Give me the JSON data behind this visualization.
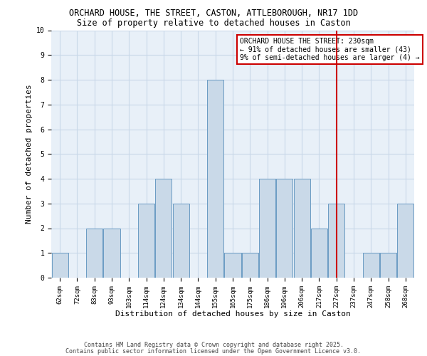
{
  "title": "ORCHARD HOUSE, THE STREET, CASTON, ATTLEBOROUGH, NR17 1DD",
  "subtitle": "Size of property relative to detached houses in Caston",
  "xlabel": "Distribution of detached houses by size in Caston",
  "ylabel": "Number of detached properties",
  "categories": [
    "62sqm",
    "72sqm",
    "83sqm",
    "93sqm",
    "103sqm",
    "114sqm",
    "124sqm",
    "134sqm",
    "144sqm",
    "155sqm",
    "165sqm",
    "175sqm",
    "186sqm",
    "196sqm",
    "206sqm",
    "217sqm",
    "227sqm",
    "237sqm",
    "247sqm",
    "258sqm",
    "268sqm"
  ],
  "values": [
    1,
    0,
    2,
    2,
    0,
    3,
    4,
    3,
    0,
    8,
    1,
    1,
    4,
    4,
    4,
    2,
    3,
    0,
    1,
    1,
    3
  ],
  "bar_color": "#c9d9e8",
  "bar_edge_color": "#6a9bc3",
  "red_line_index": 16,
  "red_line_color": "#cc0000",
  "ylim": [
    0,
    10
  ],
  "yticks": [
    0,
    1,
    2,
    3,
    4,
    5,
    6,
    7,
    8,
    9,
    10
  ],
  "grid_color": "#c8d8e8",
  "background_color": "#e8f0f8",
  "annotation_title": "ORCHARD HOUSE THE STREET: 230sqm",
  "annotation_line1": "← 91% of detached houses are smaller (43)",
  "annotation_line2": "9% of semi-detached houses are larger (4) →",
  "annotation_box_color": "#ffffff",
  "annotation_box_edge": "#cc0000",
  "footer1": "Contains HM Land Registry data © Crown copyright and database right 2025.",
  "footer2": "Contains public sector information licensed under the Open Government Licence v3.0.",
  "title_fontsize": 8.5,
  "subtitle_fontsize": 8.5,
  "axis_label_fontsize": 8,
  "tick_fontsize": 6.5,
  "annotation_fontsize": 7,
  "footer_fontsize": 6
}
